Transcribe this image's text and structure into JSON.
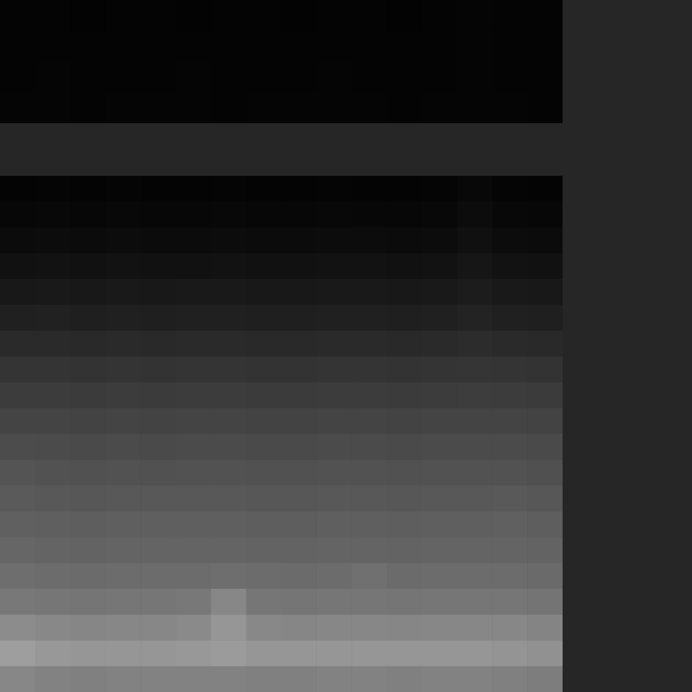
{
  "chart_data": [
    {
      "type": "heatmap",
      "tick_labels": false,
      "zlim": [
        0,
        255
      ],
      "cells": [
        [
          4,
          4,
          3,
          4,
          4,
          3,
          4,
          4,
          3,
          4,
          4,
          3,
          4,
          5,
          4,
          4
        ],
        [
          4,
          4,
          4,
          4,
          4,
          4,
          4,
          4,
          4,
          4,
          4,
          4,
          4,
          5,
          4,
          4
        ],
        [
          4,
          5,
          4,
          4,
          4,
          5,
          4,
          4,
          4,
          5,
          4,
          4,
          4,
          5,
          4,
          4
        ],
        [
          5,
          5,
          4,
          5,
          5,
          5,
          4,
          5,
          5,
          5,
          5,
          4,
          5,
          5,
          5,
          4
        ]
      ]
    },
    {
      "type": "heatmap",
      "tick_labels": false,
      "zlim": [
        0,
        255
      ],
      "cells": [
        [
          4,
          5,
          4,
          5,
          4,
          4,
          5,
          4,
          4,
          5,
          4,
          4,
          5,
          8,
          5,
          4
        ],
        [
          7,
          8,
          7,
          8,
          7,
          7,
          8,
          7,
          7,
          8,
          7,
          7,
          8,
          12,
          8,
          7
        ],
        [
          11,
          12,
          11,
          12,
          11,
          11,
          12,
          11,
          11,
          12,
          12,
          11,
          12,
          16,
          12,
          11
        ],
        [
          17,
          18,
          17,
          18,
          17,
          17,
          18,
          17,
          17,
          18,
          18,
          17,
          18,
          22,
          18,
          17
        ],
        [
          24,
          25,
          24,
          25,
          24,
          25,
          25,
          24,
          24,
          25,
          25,
          24,
          25,
          28,
          25,
          24
        ],
        [
          32,
          33,
          31,
          32,
          31,
          32,
          32,
          31,
          31,
          32,
          32,
          31,
          32,
          35,
          32,
          31
        ],
        [
          42,
          42,
          41,
          42,
          41,
          42,
          42,
          41,
          41,
          42,
          42,
          41,
          42,
          44,
          42,
          41
        ],
        [
          52,
          52,
          51,
          52,
          51,
          52,
          52,
          51,
          51,
          52,
          52,
          51,
          52,
          53,
          52,
          51
        ],
        [
          60,
          60,
          59,
          60,
          59,
          60,
          60,
          59,
          59,
          60,
          60,
          59,
          60,
          61,
          60,
          59
        ],
        [
          68,
          68,
          67,
          68,
          67,
          68,
          68,
          67,
          67,
          68,
          68,
          67,
          68,
          68,
          68,
          67
        ],
        [
          76,
          75,
          74,
          75,
          74,
          75,
          75,
          74,
          74,
          75,
          75,
          74,
          75,
          75,
          75,
          74
        ],
        [
          84,
          82,
          81,
          82,
          81,
          82,
          82,
          81,
          81,
          82,
          82,
          81,
          82,
          82,
          82,
          80
        ],
        [
          90,
          88,
          87,
          88,
          88,
          88,
          88,
          87,
          87,
          88,
          88,
          87,
          88,
          88,
          89,
          87
        ],
        [
          96,
          95,
          94,
          95,
          95,
          95,
          95,
          94,
          94,
          95,
          95,
          94,
          95,
          95,
          96,
          94
        ],
        [
          102,
          100,
          99,
          100,
          100,
          100,
          100,
          99,
          99,
          100,
          100,
          99,
          100,
          100,
          100,
          99
        ],
        [
          110,
          108,
          107,
          108,
          108,
          108,
          110,
          108,
          107,
          108,
          112,
          107,
          108,
          108,
          108,
          106
        ],
        [
          120,
          118,
          117,
          118,
          118,
          120,
          135,
          118,
          117,
          118,
          118,
          117,
          118,
          118,
          118,
          116
        ],
        [
          140,
          136,
          134,
          135,
          135,
          138,
          150,
          136,
          134,
          135,
          135,
          134,
          135,
          135,
          135,
          132
        ],
        [
          158,
          152,
          150,
          150,
          150,
          152,
          155,
          150,
          150,
          150,
          150,
          150,
          150,
          150,
          148,
          145
        ],
        [
          135,
          130,
          128,
          130,
          130,
          130,
          130,
          128,
          128,
          130,
          130,
          128,
          130,
          130,
          128,
          125
        ]
      ]
    }
  ]
}
